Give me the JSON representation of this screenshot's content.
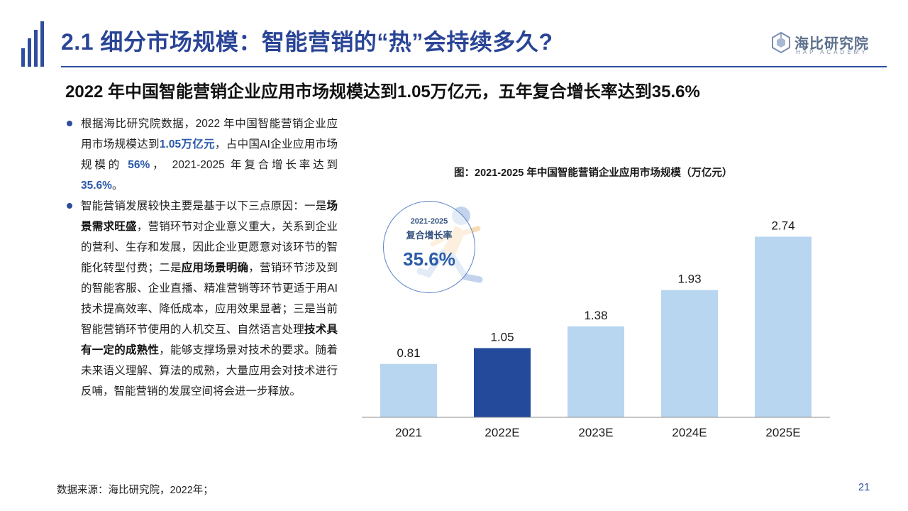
{
  "header": {
    "title": "2.1 细分市场规模：智能营销的“热”会持续多久?",
    "logo_cn": "海比研究院",
    "logo_en": "HAP ACADEMY"
  },
  "subtitle": "2022 年中国智能营销企业应用市场规模达到1.05万亿元，五年复合增长率达到35.6%",
  "bullets": [
    {
      "segments": [
        {
          "text": "根据海比研究院数据，2022 年中国智能营销企业应用市场规模达到",
          "style": "normal"
        },
        {
          "text": "1.05万亿元",
          "style": "blue"
        },
        {
          "text": "，占中国AI企业应用市场规模的 ",
          "style": "normal"
        },
        {
          "text": "56%",
          "style": "blue"
        },
        {
          "text": "， 2021-2025 年复合增长率达到 ",
          "style": "normal"
        },
        {
          "text": "35.6%",
          "style": "blue"
        },
        {
          "text": "。",
          "style": "normal"
        }
      ]
    },
    {
      "segments": [
        {
          "text": "智能营销发展较快主要是基于以下三点原因：一是",
          "style": "normal"
        },
        {
          "text": "场景需求旺盛",
          "style": "bold"
        },
        {
          "text": "，营销环节对企业意义重大，关系到企业的营利、生存和发展，因此企业更愿意对该环节的智能化转型付费；二是",
          "style": "normal"
        },
        {
          "text": "应用场景明确",
          "style": "bold"
        },
        {
          "text": "，营销环节涉及到的智能客服、企业直播、精准营销等环节更适于用AI技术提高效率、降低成本，应用效果显著；三是当前智能营销环节使用的人机交互、自然语言处理",
          "style": "normal"
        },
        {
          "text": "技术具有一定的成熟性",
          "style": "bold"
        },
        {
          "text": "，能够支撑场景对技术的要求。随着未来语义理解、算法的成熟，大量应用会对技术进行反哺，智能营销的发展空间将会进一步释放。",
          "style": "normal"
        }
      ]
    }
  ],
  "chart_title": "图：2021-2025 年中国智能营销企业应用市场规模（万亿元）",
  "cagr": {
    "period": "2021-2025",
    "label": "复合增长率",
    "value": "35.6%"
  },
  "chart_data": {
    "type": "bar",
    "title": "图：2021-2025 年中国智能营销企业应用市场规模（万亿元）",
    "categories": [
      "2021",
      "2022E",
      "2023E",
      "2024E",
      "2025E"
    ],
    "values": [
      0.81,
      1.05,
      1.38,
      1.93,
      2.74
    ],
    "value_labels": [
      "0.81",
      "1.05",
      "1.38",
      "1.93",
      "2.74"
    ],
    "highlight_index": 1,
    "colors": {
      "normal": "#b8d6f0",
      "highlight": "#234a9b",
      "axis": "#8c8c8c"
    },
    "ylim": [
      0,
      2.95
    ],
    "grid": false,
    "xlabel": "",
    "ylabel": ""
  },
  "footer": {
    "source": "数据来源：海比研究院，2022年；",
    "page": "21"
  },
  "theme": {
    "primary": "#2e4d9c",
    "accent_blue": "#2a58a8"
  }
}
